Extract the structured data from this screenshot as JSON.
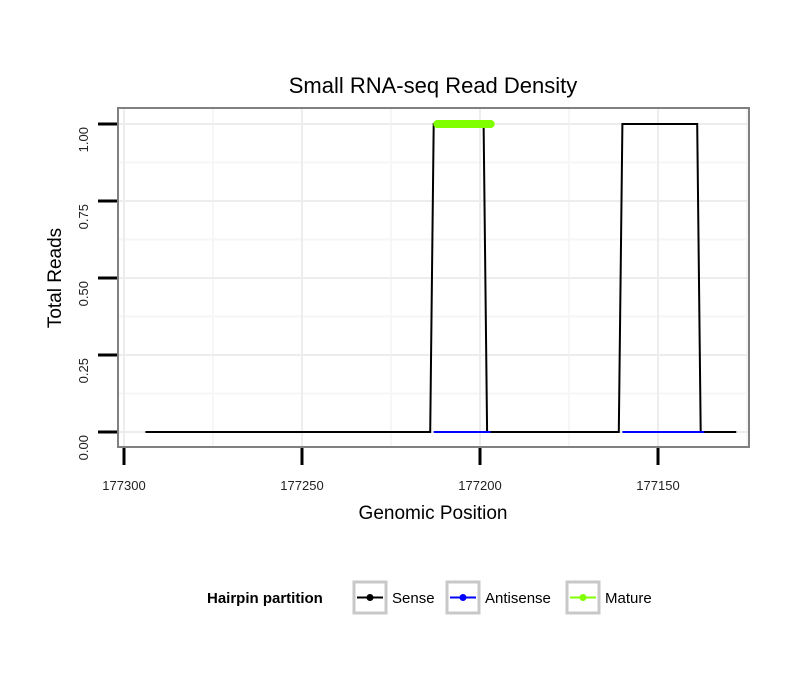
{
  "chart_data": {
    "type": "line",
    "title": "Small RNA-seq Read Density",
    "xlabel": "Genomic Position",
    "ylabel": "Total Reads",
    "x_reversed": true,
    "xlim": [
      177300,
      177125
    ],
    "ylim": [
      0,
      1
    ],
    "grid": true,
    "x_ticks": [
      177300,
      177250,
      177200,
      177150
    ],
    "x_tick_labels": [
      "177300",
      "177250",
      "177200",
      "177150"
    ],
    "y_ticks": [
      0,
      0.25,
      0.5,
      0.75,
      1
    ],
    "y_tick_labels": [
      "0.00",
      "0.25",
      "0.50",
      "0.75",
      "1.00"
    ],
    "series": [
      {
        "name": "Sense",
        "color": "#000000",
        "x": [
          177294,
          177214,
          177213,
          177199,
          177198,
          177161,
          177160,
          177139,
          177138,
          177128
        ],
        "y": [
          0,
          0,
          1,
          1,
          0,
          0,
          1,
          1,
          0,
          0
        ]
      },
      {
        "name": "Antisense",
        "color": "#0000ff",
        "x": [
          177213,
          177197,
          177160,
          177137
        ],
        "y": [
          0,
          0,
          0,
          0
        ],
        "segments": [
          [
            0,
            1
          ],
          [
            2,
            3
          ]
        ]
      },
      {
        "name": "Mature",
        "color": "#7fff00",
        "x": [
          177212,
          177197
        ],
        "y": [
          1,
          1
        ]
      }
    ],
    "legend": {
      "title": "Hairpin partition",
      "position": "bottom",
      "entries": [
        "Sense",
        "Antisense",
        "Mature"
      ]
    }
  }
}
